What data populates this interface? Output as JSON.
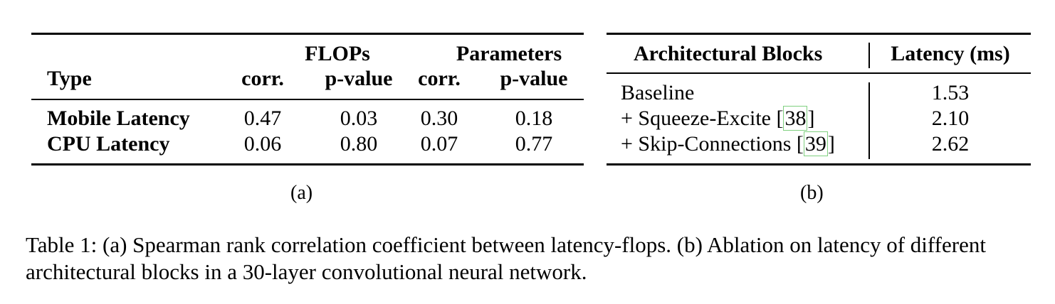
{
  "table_a": {
    "group_headers": [
      "FLOPs",
      "Parameters"
    ],
    "col_headers": [
      "Type",
      "corr.",
      "p-value",
      "corr.",
      "p-value"
    ],
    "rows": [
      {
        "type": "Mobile Latency",
        "flops_corr": "0.47",
        "flops_p": "0.03",
        "params_corr": "0.30",
        "params_p": "0.18"
      },
      {
        "type": "CPU Latency",
        "flops_corr": "0.06",
        "flops_p": "0.80",
        "params_corr": "0.07",
        "params_p": "0.77"
      }
    ],
    "sublabel": "(a)"
  },
  "table_b": {
    "headers": [
      "Architectural Blocks",
      "Latency (ms)"
    ],
    "rows": [
      {
        "block": "Baseline",
        "cite": "",
        "latency": "1.53"
      },
      {
        "block": "+ Squeeze-Excite ",
        "cite": "38",
        "latency": "2.10"
      },
      {
        "block": "+ Skip-Connections ",
        "cite": "39",
        "latency": "2.62"
      }
    ],
    "sublabel": "(b)"
  },
  "caption": "Table 1: (a) Spearman rank correlation coefficient between latency-flops. (b) Ablation on latency of different architectural blocks in a 30-layer convolutional neural network."
}
